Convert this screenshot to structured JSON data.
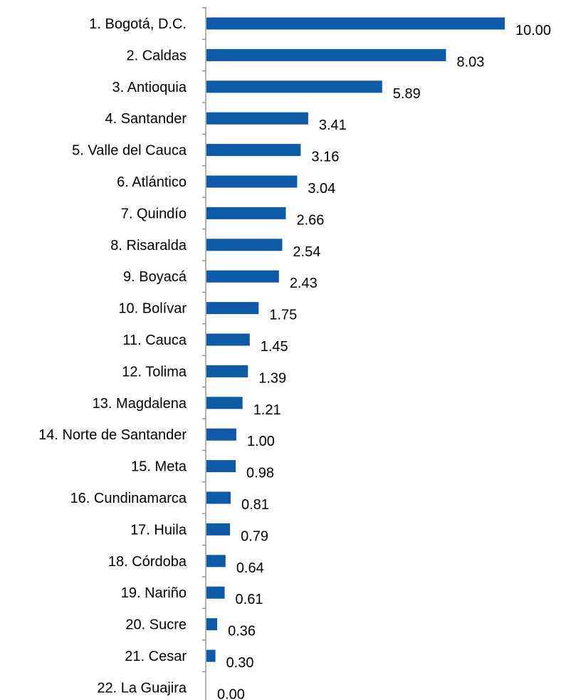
{
  "chart_data": {
    "type": "bar",
    "orientation": "horizontal",
    "title": "",
    "xlabel": "",
    "ylabel": "",
    "categories": [
      "1. Bogotá, D.C.",
      "2. Caldas",
      "3. Antioquia",
      "4. Santander",
      "5. Valle del Cauca",
      "6. Atlántico",
      "7. Quindío",
      "8. Risaralda",
      "9. Boyacá",
      "10. Bolívar",
      "11. Cauca",
      "12. Tolima",
      "13. Magdalena",
      "14. Norte de Santander",
      "15. Meta",
      "16. Cundinamarca",
      "17. Huila",
      "18. Córdoba",
      "19. Nariño",
      "20. Sucre",
      "21. Cesar",
      "22. La Guajira"
    ],
    "values": [
      10.0,
      8.03,
      5.89,
      3.41,
      3.16,
      3.04,
      2.66,
      2.54,
      2.43,
      1.75,
      1.45,
      1.39,
      1.21,
      1.0,
      0.98,
      0.81,
      0.79,
      0.64,
      0.61,
      0.36,
      0.3,
      0.0
    ],
    "value_labels": [
      "10.00",
      "8.03",
      "5.89",
      "3.41",
      "3.16",
      "3.04",
      "2.66",
      "2.54",
      "2.43",
      "1.75",
      "1.45",
      "1.39",
      "1.21",
      "1.00",
      "0.98",
      "0.81",
      "0.79",
      "0.64",
      "0.61",
      "0.36",
      "0.30",
      "0.00"
    ],
    "xlim": [
      0,
      10
    ],
    "grid": false,
    "legend": "none",
    "bar_color": "#0E5AA7",
    "axis_color": "#888888"
  }
}
